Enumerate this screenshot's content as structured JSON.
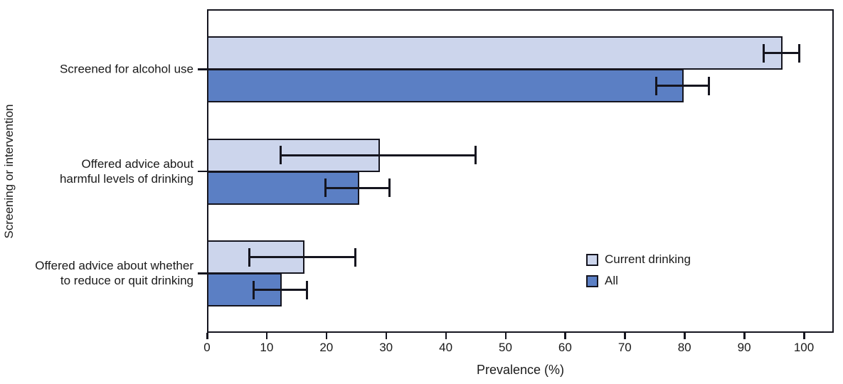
{
  "chart_data": {
    "type": "bar",
    "orientation": "horizontal",
    "title": "",
    "xlabel": "Prevalence (%)",
    "ylabel": "Screening or intervention",
    "xlim": [
      0,
      105
    ],
    "xticks": [
      0,
      10,
      20,
      30,
      40,
      50,
      60,
      70,
      80,
      90,
      100
    ],
    "grid": false,
    "legend_position": "inside-lower-right",
    "categories": [
      [
        "Screened for alcohol use"
      ],
      [
        "Offered advice about",
        "harmful levels of drinking"
      ],
      [
        "Offered advice about whether",
        "to reduce or quit drinking"
      ]
    ],
    "series": [
      {
        "name": "Current drinking",
        "color": "#ccd5ec",
        "values": [
          96.2,
          28.7,
          16.1
        ],
        "ci_low": [
          93.2,
          12.3,
          7.0
        ],
        "ci_high": [
          99.3,
          45.1,
          24.9
        ]
      },
      {
        "name": "All",
        "color": "#5b7fc4",
        "values": [
          79.6,
          25.3,
          12.3
        ],
        "ci_low": [
          75.2,
          19.8,
          7.7
        ],
        "ci_high": [
          84.1,
          30.6,
          16.8
        ]
      }
    ],
    "bar_border_color": "#15151f",
    "error_bar_color": "#15151f",
    "background_color": "#ffffff"
  }
}
